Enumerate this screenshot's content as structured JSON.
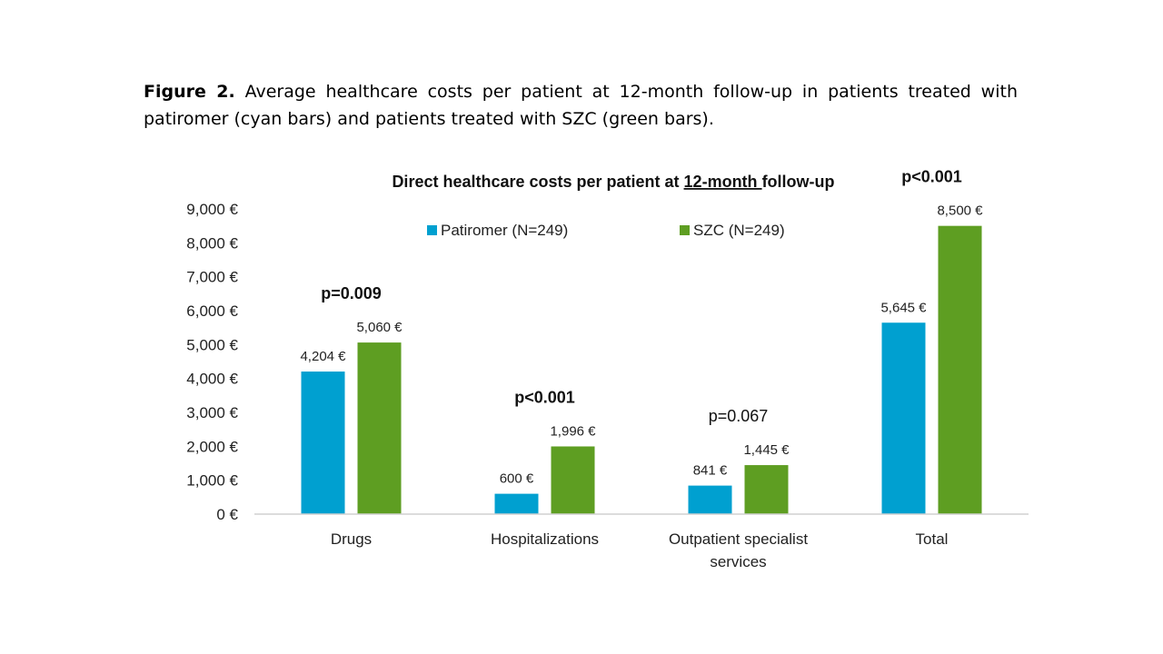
{
  "caption": {
    "label": "Figure 2.",
    "text": " Average healthcare costs per patient at 12-month follow-up in patients treated with patiromer (cyan bars) and patients treated with SZC (green bars)."
  },
  "chart_data": {
    "type": "bar",
    "title_parts": [
      "Direct healthcare costs per patient at ",
      "12-month ",
      "follow-up"
    ],
    "categories": [
      [
        "Drugs"
      ],
      [
        "Hospitalizations"
      ],
      [
        "Outpatient specialist",
        "services"
      ],
      [
        "Total"
      ]
    ],
    "series": [
      {
        "name": "Patiromer (N=249)",
        "color": "#00A0D0",
        "values": [
          4204,
          600,
          841,
          5645
        ],
        "labels": [
          "4,204 €",
          "600 €",
          "841 €",
          "5,645 €"
        ]
      },
      {
        "name": "SZC (N=249)",
        "color": "#5E9E22",
        "values": [
          5060,
          1996,
          1445,
          8500
        ],
        "labels": [
          "5,060 €",
          "1,996 €",
          "1,445 €",
          "8,500 €"
        ]
      }
    ],
    "ylim": [
      0,
      9000
    ],
    "yticks": [
      0,
      1000,
      2000,
      3000,
      4000,
      5000,
      6000,
      7000,
      8000,
      9000
    ],
    "ytick_labels": [
      "0 €",
      "1,000 €",
      "2,000 €",
      "3,000 €",
      "4,000 €",
      "5,000 €",
      "6,000 €",
      "7,000 €",
      "8,000 €",
      "9,000 €"
    ],
    "annotations": [
      {
        "text": "p=0.009",
        "bold": true
      },
      {
        "text": "p<0.001",
        "bold": true
      },
      {
        "text": "p=0.067",
        "bold": false
      },
      {
        "text": "p<0.001",
        "bold": true
      }
    ],
    "legend_position": "top",
    "grid": false
  }
}
